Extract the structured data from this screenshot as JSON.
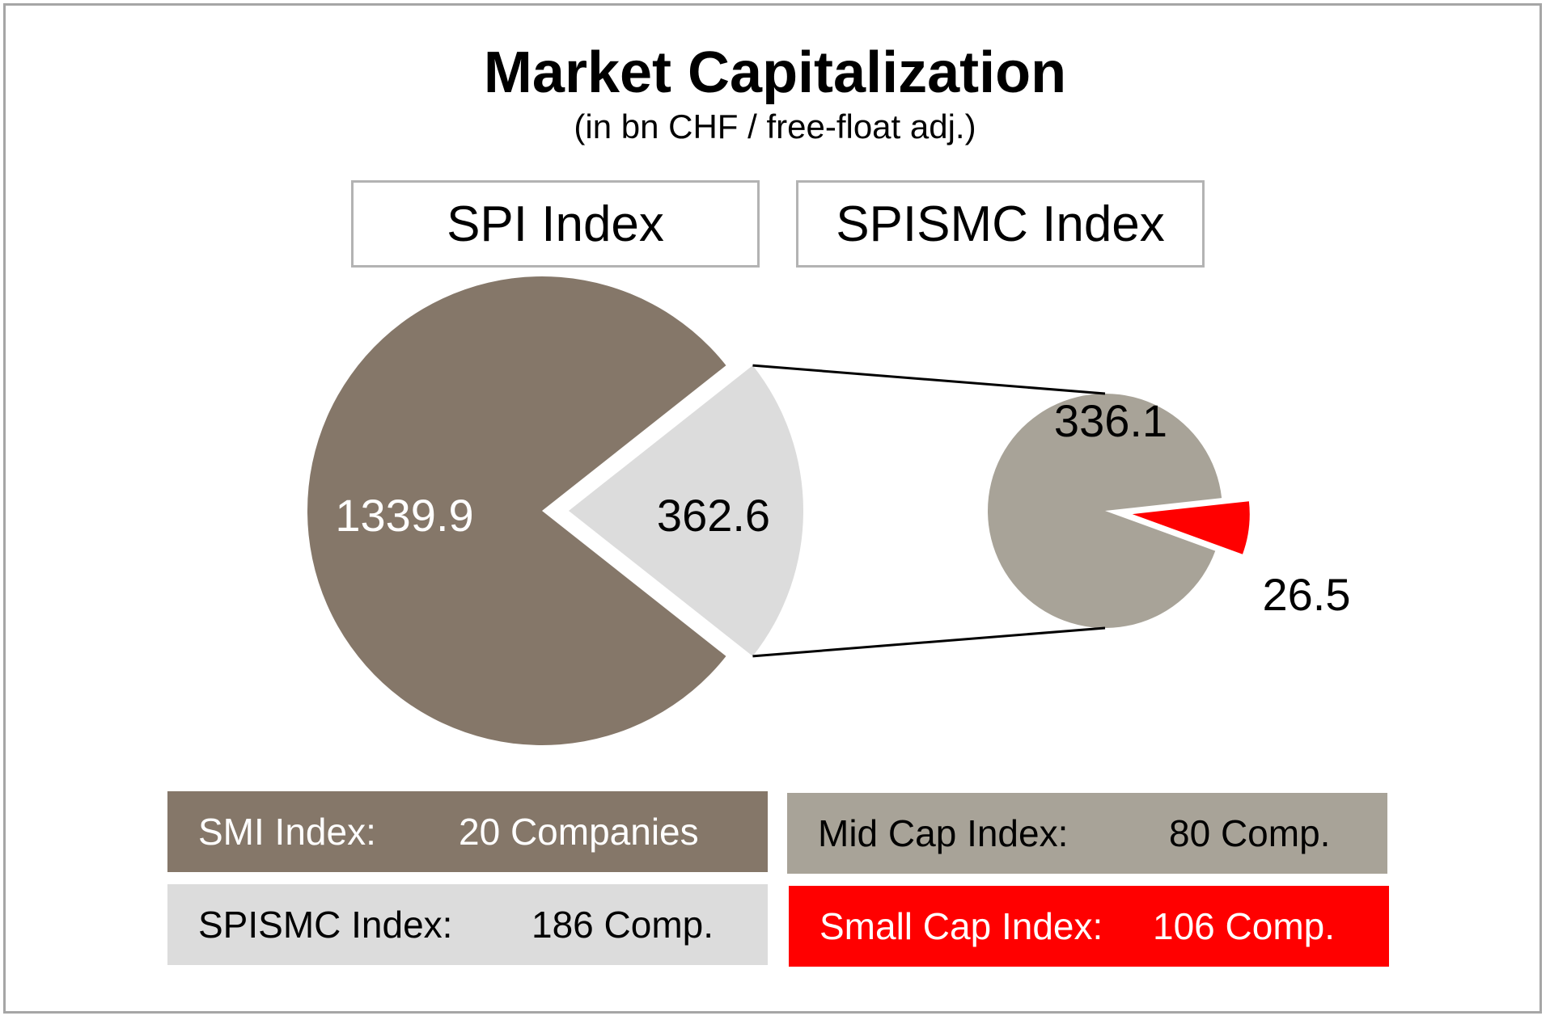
{
  "chart_data": {
    "type": "pie",
    "title": "Market Capitalization",
    "subtitle": "(in bn CHF / free-float adj.)",
    "unit": "bn CHF",
    "pies": [
      {
        "panel_label": "SPI Index",
        "slices": [
          {
            "label": "SMI Index",
            "value": 1339.9,
            "display": "1339.9",
            "color": "#857769"
          },
          {
            "label": "SPISMC Index",
            "value": 362.6,
            "display": "362.6",
            "color": "#dcdcdc"
          }
        ]
      },
      {
        "panel_label": "SPISMC Index",
        "slices": [
          {
            "label": "Mid Cap Index",
            "value": 336.1,
            "display": "336.1",
            "color": "#a8a398"
          },
          {
            "label": "Small Cap Index",
            "value": 26.5,
            "display": "26.5",
            "color": "#ff0000"
          }
        ]
      }
    ],
    "legend": [
      {
        "name": "SMI Index:",
        "count": "20 Companies",
        "color": "#857769"
      },
      {
        "name": "Mid Cap Index:",
        "count": "80 Comp.",
        "color": "#a8a398"
      },
      {
        "name": "SPISMC Index:",
        "count": "186 Comp.",
        "color": "#dcdcdc"
      },
      {
        "name": "Small Cap Index:",
        "count": "106 Comp.",
        "color": "#ff0000"
      }
    ]
  }
}
